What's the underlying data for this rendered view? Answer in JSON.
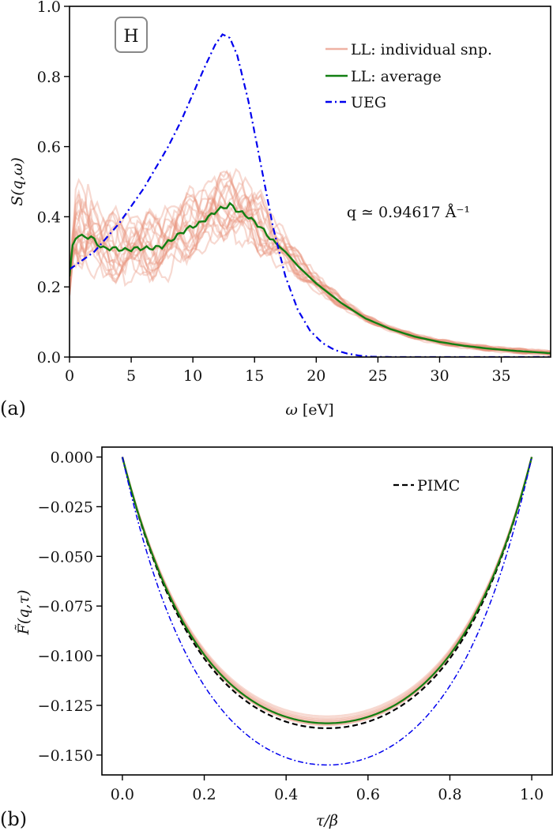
{
  "chart_data": [
    {
      "panel": "(a)",
      "type": "line",
      "title": "",
      "xlabel": "ω [eV]",
      "ylabel": "S(q,ω)",
      "xlim": [
        0,
        39
      ],
      "ylim": [
        0.0,
        1.0
      ],
      "xticks": [
        0,
        5,
        10,
        15,
        20,
        25,
        30,
        35
      ],
      "xtick_labels": [
        "0",
        "5",
        "10",
        "15",
        "20",
        "25",
        "30",
        "35"
      ],
      "yticks": [
        0.0,
        0.2,
        0.4,
        0.6,
        0.8,
        1.0
      ],
      "ytick_labels": [
        "0.0",
        "0.2",
        "0.4",
        "0.6",
        "0.8",
        "1.0"
      ],
      "grid": false,
      "legend_position": "top-right",
      "badge": "H",
      "annotation": "q ≃ 0.94617 Å⁻¹",
      "series": [
        {
          "name": "LL: individual snp.",
          "color": "#e8927c",
          "style": "solid",
          "count": 20,
          "note": "noisy snapshots scattered around the average, spread ~±0.08 below 15 eV, converging above 18 eV"
        },
        {
          "name": "LL: average",
          "color": "#127f12",
          "style": "solid",
          "x": [
            0,
            0.3,
            0.7,
            1.2,
            1.7,
            2.2,
            2.7,
            3.5,
            4.5,
            5.5,
            6.5,
            7.5,
            8.5,
            9.5,
            10.5,
            11.5,
            12.0,
            12.5,
            13.0,
            13.5,
            14.5,
            15.5,
            16.5,
            17.5,
            18.5,
            20,
            22,
            24,
            26,
            28,
            30,
            32,
            34,
            36,
            39
          ],
          "y": [
            0.23,
            0.33,
            0.35,
            0.34,
            0.345,
            0.325,
            0.31,
            0.31,
            0.305,
            0.31,
            0.31,
            0.315,
            0.34,
            0.365,
            0.38,
            0.405,
            0.42,
            0.425,
            0.435,
            0.42,
            0.4,
            0.37,
            0.33,
            0.3,
            0.26,
            0.21,
            0.155,
            0.11,
            0.08,
            0.058,
            0.043,
            0.032,
            0.024,
            0.018,
            0.011
          ]
        },
        {
          "name": "UEG",
          "color": "#0000ee",
          "style": "dashdot",
          "x": [
            0,
            2,
            4,
            6,
            8,
            9,
            10,
            11,
            11.8,
            12.4,
            13,
            13.6,
            14.5,
            15.5,
            16.5,
            17.5,
            18.5,
            19.5,
            20.5,
            21.5,
            22.5,
            23.5,
            24.5,
            26,
            39
          ],
          "y": [
            0.25,
            0.3,
            0.38,
            0.48,
            0.6,
            0.67,
            0.75,
            0.83,
            0.89,
            0.92,
            0.91,
            0.86,
            0.73,
            0.55,
            0.37,
            0.23,
            0.135,
            0.075,
            0.04,
            0.02,
            0.01,
            0.004,
            0.001,
            0.0,
            0.0
          ]
        }
      ]
    },
    {
      "panel": "(b)",
      "type": "line",
      "title": "",
      "xlabel": "τ/β",
      "ylabel": "F̃(q,τ)",
      "xlim": [
        -0.05,
        1.05
      ],
      "ylim": [
        -0.16,
        0.005
      ],
      "xticks": [
        0.0,
        0.2,
        0.4,
        0.6,
        0.8,
        1.0
      ],
      "xtick_labels": [
        "0.0",
        "0.2",
        "0.4",
        "0.6",
        "0.8",
        "1.0"
      ],
      "yticks": [
        0.0,
        -0.025,
        -0.05,
        -0.075,
        -0.1,
        -0.125,
        -0.15
      ],
      "ytick_labels": [
        "0.000",
        "−0.025",
        "−0.050",
        "−0.075",
        "−0.100",
        "−0.125",
        "−0.150"
      ],
      "grid": false,
      "legend_position": "top-right",
      "series": [
        {
          "name": "LL: individual snp.",
          "color": "#e8927c",
          "style": "solid",
          "minima": [
            -0.1305,
            -0.1315,
            -0.1322,
            -0.1328,
            -0.1333,
            -0.1338,
            -0.1342,
            -0.1347,
            -0.135
          ]
        },
        {
          "name": "LL: average",
          "color": "#127f12",
          "style": "solid",
          "minimum": -0.134
        },
        {
          "name": "PIMC",
          "color": "#000000",
          "style": "dashed",
          "minimum": -0.1365
        },
        {
          "name": "UEG",
          "color": "#0000ee",
          "style": "dashdot",
          "minimum": -0.155
        }
      ]
    }
  ],
  "legend_a": [
    "LL: individual snp.",
    "LL: average",
    "UEG"
  ],
  "legend_b": [
    "PIMC"
  ],
  "panel_labels": [
    "(a)",
    "(b)"
  ]
}
